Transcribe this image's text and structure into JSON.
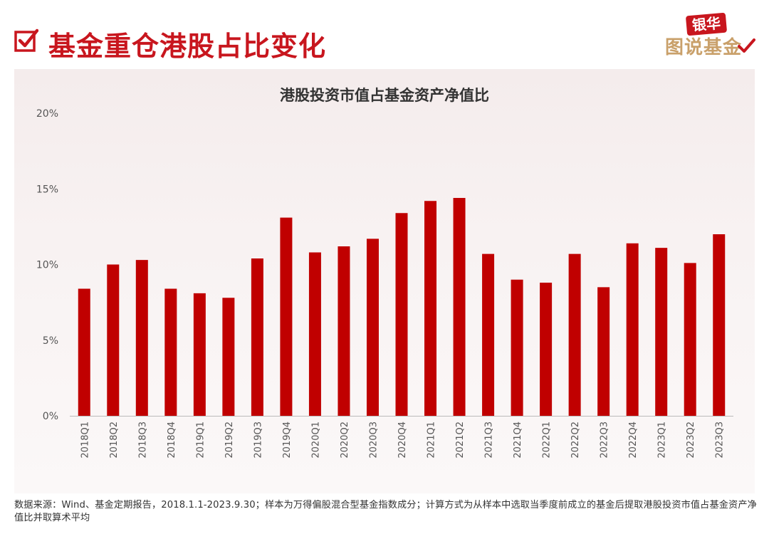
{
  "header": {
    "title": "基金重仓港股占比变化",
    "brand_badge": "银华",
    "brand_text": "图说基金"
  },
  "colors": {
    "accent": "#c8161e",
    "brand_gold": "#c9a06a",
    "bar": "#c00000",
    "panel_top": "#f4ecec"
  },
  "icons": {
    "title_icon": "checkbox-icon",
    "brand_icon": "checkmark-icon"
  },
  "chart_data": {
    "type": "bar",
    "title": "港股投资市值占基金资产净值比",
    "xlabel": "",
    "ylabel": "",
    "ylim": [
      0,
      20
    ],
    "y_ticks": [
      0,
      5,
      10,
      15,
      20
    ],
    "y_tick_labels": [
      "0%",
      "5%",
      "10%",
      "15%",
      "20%"
    ],
    "grid": false,
    "legend": "none",
    "categories": [
      "2018Q1",
      "2018Q2",
      "2018Q3",
      "2018Q4",
      "2019Q1",
      "2019Q2",
      "2019Q3",
      "2019Q4",
      "2020Q1",
      "2020Q2",
      "2020Q3",
      "2020Q4",
      "2021Q1",
      "2021Q2",
      "2021Q3",
      "2021Q4",
      "2022Q1",
      "2022Q2",
      "2022Q3",
      "2022Q4",
      "2023Q1",
      "2023Q2",
      "2023Q3"
    ],
    "values": [
      8.4,
      10.0,
      10.3,
      8.4,
      8.1,
      7.8,
      10.4,
      13.1,
      10.8,
      11.2,
      11.7,
      13.4,
      14.2,
      14.4,
      10.7,
      9.0,
      8.8,
      10.7,
      8.5,
      11.4,
      11.1,
      10.1,
      12.0
    ]
  },
  "footnote": "数据来源：Wind、基金定期报告，2018.1.1-2023.9.30；样本为万得偏股混合型基金指数成分；计算方式为从样本中选取当季度前成立的基金后提取港股投资市值占基金资产净值比并取算术平均"
}
